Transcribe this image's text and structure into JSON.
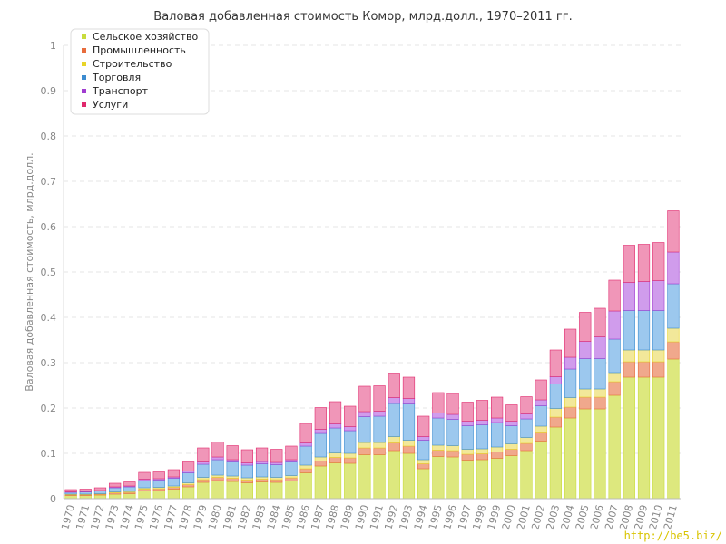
{
  "chart_data": {
    "type": "bar",
    "stacked": true,
    "title": "Валовая добавленная стоимость Комор, млрд.долл., 1970–2011 гг.",
    "xlabel": "",
    "ylabel": "Валовая добавленная стоимость, млрд.долл.",
    "ylim": [
      0,
      1
    ],
    "yticks": [
      "0",
      "0.1",
      "0.2",
      "0.3",
      "0.4",
      "0.5",
      "0.6",
      "0.7",
      "0.8",
      "0.9",
      "1"
    ],
    "grid": true,
    "legend_position": "top-left",
    "categories": [
      "1970",
      "1971",
      "1972",
      "1973",
      "1974",
      "1975",
      "1976",
      "1977",
      "1978",
      "1979",
      "1980",
      "1981",
      "1982",
      "1983",
      "1984",
      "1985",
      "1986",
      "1987",
      "1988",
      "1989",
      "1990",
      "1991",
      "1992",
      "1993",
      "1994",
      "1995",
      "1996",
      "1997",
      "1998",
      "1999",
      "2000",
      "2001",
      "2002",
      "2003",
      "2004",
      "2005",
      "2006",
      "2007",
      "2008",
      "2009",
      "2010",
      "2011"
    ],
    "series": [
      {
        "name": "Сельское хозяйство",
        "color": "#c8dc3c",
        "fill": "#dde87e",
        "values": [
          0.007,
          0.007,
          0.008,
          0.01,
          0.011,
          0.017,
          0.018,
          0.021,
          0.026,
          0.036,
          0.04,
          0.038,
          0.035,
          0.037,
          0.036,
          0.039,
          0.057,
          0.072,
          0.079,
          0.078,
          0.097,
          0.097,
          0.106,
          0.1,
          0.066,
          0.093,
          0.092,
          0.085,
          0.086,
          0.089,
          0.095,
          0.106,
          0.127,
          0.158,
          0.178,
          0.198,
          0.198,
          0.228,
          0.268,
          0.268,
          0.268,
          0.308
        ]
      },
      {
        "name": "Промышленность",
        "color": "#e86c3c",
        "fill": "#f0a88c",
        "values": [
          0.002,
          0.002,
          0.002,
          0.003,
          0.003,
          0.004,
          0.004,
          0.004,
          0.005,
          0.006,
          0.007,
          0.007,
          0.006,
          0.006,
          0.006,
          0.007,
          0.009,
          0.011,
          0.012,
          0.012,
          0.015,
          0.015,
          0.017,
          0.016,
          0.011,
          0.014,
          0.014,
          0.013,
          0.013,
          0.014,
          0.014,
          0.016,
          0.018,
          0.022,
          0.024,
          0.026,
          0.026,
          0.03,
          0.034,
          0.034,
          0.034,
          0.038
        ]
      },
      {
        "name": "Строительство",
        "color": "#e8d428",
        "fill": "#f2e89a",
        "values": [
          0.001,
          0.001,
          0.001,
          0.002,
          0.002,
          0.003,
          0.003,
          0.003,
          0.004,
          0.005,
          0.005,
          0.005,
          0.005,
          0.005,
          0.005,
          0.005,
          0.008,
          0.009,
          0.01,
          0.01,
          0.012,
          0.012,
          0.014,
          0.013,
          0.009,
          0.011,
          0.011,
          0.011,
          0.011,
          0.011,
          0.012,
          0.013,
          0.015,
          0.019,
          0.021,
          0.018,
          0.018,
          0.02,
          0.026,
          0.026,
          0.026,
          0.03
        ]
      },
      {
        "name": "Торговля",
        "color": "#3c8cd0",
        "fill": "#9cc8ee",
        "values": [
          0.004,
          0.005,
          0.006,
          0.009,
          0.01,
          0.016,
          0.016,
          0.017,
          0.022,
          0.029,
          0.034,
          0.031,
          0.028,
          0.029,
          0.028,
          0.03,
          0.042,
          0.052,
          0.055,
          0.05,
          0.057,
          0.058,
          0.073,
          0.08,
          0.043,
          0.06,
          0.058,
          0.052,
          0.053,
          0.054,
          0.04,
          0.041,
          0.045,
          0.054,
          0.063,
          0.067,
          0.067,
          0.074,
          0.087,
          0.087,
          0.087,
          0.098
        ]
      },
      {
        "name": "Транспорт",
        "color": "#a03cd0",
        "fill": "#d09cec",
        "values": [
          0.001,
          0.001,
          0.001,
          0.002,
          0.002,
          0.003,
          0.003,
          0.003,
          0.004,
          0.005,
          0.006,
          0.005,
          0.005,
          0.005,
          0.005,
          0.005,
          0.007,
          0.009,
          0.009,
          0.009,
          0.011,
          0.011,
          0.013,
          0.012,
          0.008,
          0.011,
          0.011,
          0.01,
          0.01,
          0.01,
          0.01,
          0.011,
          0.013,
          0.016,
          0.026,
          0.038,
          0.048,
          0.062,
          0.062,
          0.064,
          0.066,
          0.07
        ]
      },
      {
        "name": "Услуги",
        "color": "#e0286c",
        "fill": "#f096b8",
        "values": [
          0.005,
          0.005,
          0.006,
          0.008,
          0.009,
          0.015,
          0.015,
          0.016,
          0.02,
          0.031,
          0.033,
          0.031,
          0.029,
          0.03,
          0.029,
          0.03,
          0.043,
          0.048,
          0.049,
          0.045,
          0.056,
          0.056,
          0.054,
          0.047,
          0.045,
          0.045,
          0.046,
          0.042,
          0.044,
          0.046,
          0.036,
          0.038,
          0.044,
          0.059,
          0.062,
          0.064,
          0.063,
          0.068,
          0.082,
          0.082,
          0.084,
          0.091
        ]
      }
    ]
  },
  "watermark": "http://be5.biz/"
}
